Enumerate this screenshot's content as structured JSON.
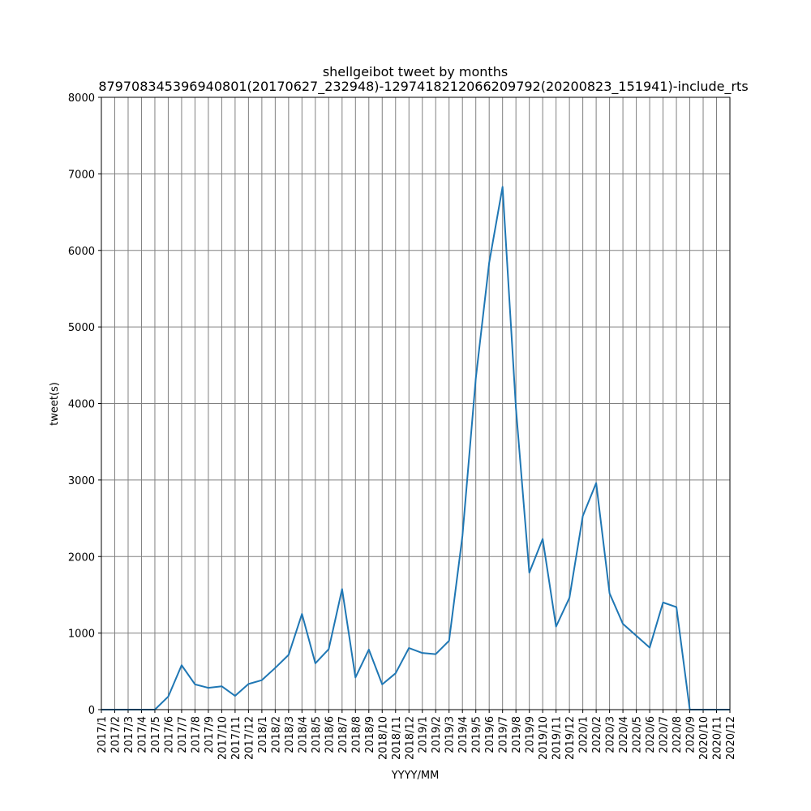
{
  "chart_data": {
    "type": "line",
    "title": "shellgeibot tweet by months",
    "subtitle": "879708345396940801(20170627_232948)-1297418212066209792(20200823_151941)-include_rts",
    "xlabel": "YYYY/MM",
    "ylabel": "tweet(s)",
    "ylim": [
      0,
      8000
    ],
    "yticks": [
      0,
      1000,
      2000,
      3000,
      4000,
      5000,
      6000,
      7000,
      8000
    ],
    "grid": true,
    "colors": {
      "line": "#1f77b4",
      "grid": "#808080"
    },
    "categories": [
      "2017/1",
      "2017/2",
      "2017/3",
      "2017/4",
      "2017/5",
      "2017/6",
      "2017/7",
      "2017/8",
      "2017/9",
      "2017/10",
      "2017/11",
      "2017/12",
      "2018/1",
      "2018/2",
      "2018/3",
      "2018/4",
      "2018/5",
      "2018/6",
      "2018/7",
      "2018/8",
      "2018/9",
      "2018/10",
      "2018/11",
      "2018/12",
      "2019/1",
      "2019/2",
      "2019/3",
      "2019/4",
      "2019/5",
      "2019/6",
      "2019/7",
      "2019/8",
      "2019/9",
      "2019/10",
      "2019/11",
      "2019/12",
      "2020/1",
      "2020/2",
      "2020/3",
      "2020/4",
      "2020/5",
      "2020/6",
      "2020/7",
      "2020/8",
      "2020/9",
      "2020/10",
      "2020/11",
      "2020/12"
    ],
    "values": [
      0,
      0,
      0,
      0,
      0,
      170,
      580,
      330,
      285,
      305,
      180,
      335,
      385,
      545,
      715,
      1250,
      605,
      790,
      1575,
      420,
      785,
      330,
      475,
      805,
      740,
      725,
      900,
      2270,
      4330,
      5840,
      6830,
      3940,
      1790,
      2230,
      1085,
      1460,
      2530,
      2960,
      1520,
      1120,
      965,
      810,
      1400,
      1340,
      0,
      0,
      0,
      0
    ]
  }
}
